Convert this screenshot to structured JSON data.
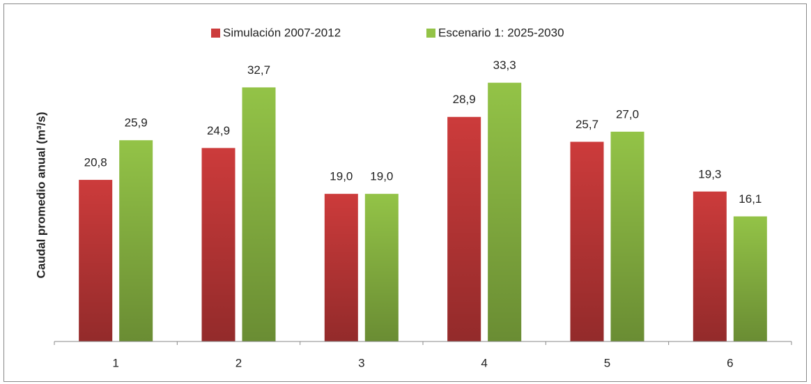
{
  "chart_data": {
    "type": "bar",
    "y_label": "Caudal promedio anual (m³/s)",
    "categories": [
      "1",
      "2",
      "3",
      "4",
      "5",
      "6"
    ],
    "series": [
      {
        "name": "Simulación 2007-2012",
        "color": "#cc3b3b",
        "values": [
          20.8,
          24.9,
          19.0,
          28.9,
          25.7,
          19.3
        ],
        "value_labels": [
          "20,8",
          "24,9",
          "19,0",
          "28,9",
          "25,7",
          "19,3"
        ]
      },
      {
        "name": "Escenario 1: 2025-2030",
        "color": "#93c347",
        "values": [
          25.9,
          32.7,
          19.0,
          33.3,
          27.0,
          16.1
        ],
        "value_labels": [
          "25,9",
          "32,7",
          "19,0",
          "33,3",
          "27,0",
          "16,1"
        ]
      }
    ],
    "ylim": [
      0,
      40
    ],
    "legend": "top"
  }
}
